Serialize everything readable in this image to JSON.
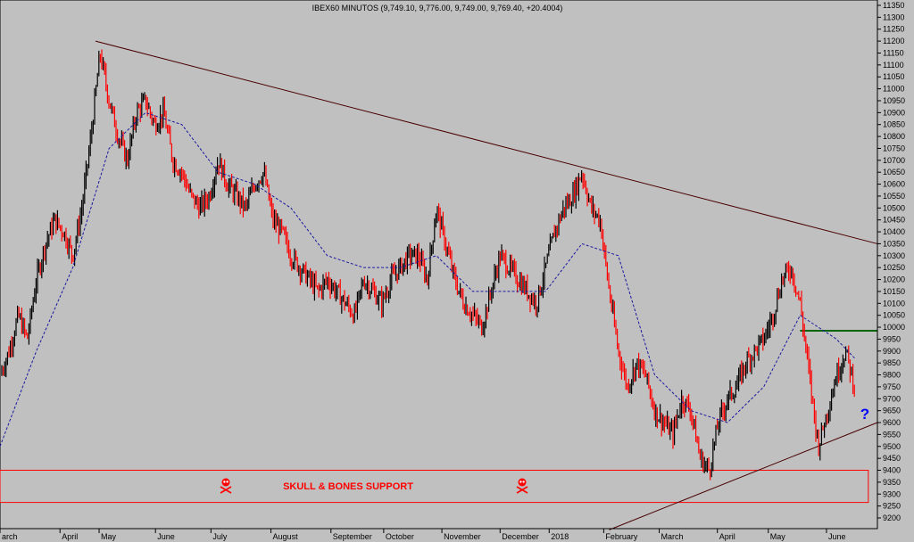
{
  "title": "IBEX60 MINUTOS (9,749.10, 9,776.00, 9,749.00, 9,769.40, +20.4004)",
  "annotations": {
    "support_label": "SKULL & BONES SUPPORT",
    "question_mark": "?"
  },
  "colors": {
    "background": "#c0c0c0",
    "candle_up": "#000000",
    "candle_down": "#ff0000",
    "moving_average": "#1a1aa0",
    "trendline": "#4a0000",
    "resistance": "#006400",
    "support_box": "#ff0000",
    "question_mark": "#0000ff"
  },
  "chart_data": {
    "type": "line",
    "title": "IBEX60 MINUTOS (9,749.10, 9,776.00, 9,749.00, 9,769.40, +20.4004)",
    "ylim": [
      9150,
      11380
    ],
    "y_ticks": [
      11350,
      11300,
      11250,
      11200,
      11150,
      11100,
      11050,
      11000,
      10950,
      10900,
      10850,
      10800,
      10750,
      10700,
      10650,
      10600,
      10550,
      10500,
      10450,
      10400,
      10350,
      10300,
      10250,
      10200,
      10150,
      10100,
      10050,
      10000,
      9950,
      9900,
      9850,
      9800,
      9750,
      9700,
      9650,
      9600,
      9550,
      9500,
      9450,
      9400,
      9350,
      9300,
      9250,
      9200
    ],
    "x_ticks": [
      {
        "label": "arch",
        "t": 0
      },
      {
        "label": "April",
        "t": 6.6
      },
      {
        "label": "May",
        "t": 10.9
      },
      {
        "label": "June",
        "t": 17.1
      },
      {
        "label": "July",
        "t": 23.2
      },
      {
        "label": "August",
        "t": 29.8
      },
      {
        "label": "September",
        "t": 36.4
      },
      {
        "label": "October",
        "t": 42.2
      },
      {
        "label": "November",
        "t": 48.6
      },
      {
        "label": "December",
        "t": 55.0
      },
      {
        "label": "2018",
        "t": 60.4
      },
      {
        "label": "February",
        "t": 66.4
      },
      {
        "label": "March",
        "t": 72.5
      },
      {
        "label": "April",
        "t": 78.9
      },
      {
        "label": "May",
        "t": 84.5
      },
      {
        "label": "June",
        "t": 90.9
      }
    ],
    "t_max": 96.5,
    "series": [
      {
        "name": "",
        "kind": "price",
        "x": [
          0,
          1,
          2,
          3,
          4,
          5,
          6,
          7,
          8,
          9,
          10,
          11,
          12,
          13,
          14,
          15,
          16,
          17,
          18,
          19,
          20,
          21,
          22,
          23,
          24,
          25,
          26,
          27,
          28,
          29,
          30,
          31,
          32,
          33,
          34,
          35,
          36,
          37,
          38,
          39,
          40,
          41,
          42,
          43,
          44,
          45,
          46,
          47,
          48,
          49,
          50,
          51,
          52,
          53,
          54,
          55,
          56,
          57,
          58,
          59,
          60,
          61,
          62,
          63,
          64,
          65,
          66,
          67,
          68,
          69,
          70,
          71,
          72,
          73,
          74,
          75,
          76,
          77,
          78,
          79,
          80,
          81,
          82,
          83,
          84,
          85,
          86,
          87,
          88,
          89,
          90,
          91,
          92,
          93,
          94
        ],
        "values": [
          9800,
          9900,
          10050,
          9950,
          10200,
          10350,
          10450,
          10400,
          10300,
          10500,
          10800,
          11150,
          10950,
          10800,
          10700,
          10900,
          10950,
          10850,
          10900,
          10700,
          10650,
          10550,
          10500,
          10550,
          10700,
          10600,
          10550,
          10500,
          10600,
          10650,
          10450,
          10400,
          10300,
          10250,
          10200,
          10150,
          10200,
          10150,
          10100,
          10050,
          10200,
          10150,
          10100,
          10200,
          10250,
          10300,
          10300,
          10200,
          10500,
          10350,
          10200,
          10100,
          10050,
          10000,
          10150,
          10300,
          10250,
          10200,
          10150,
          10100,
          10250,
          10400,
          10500,
          10550,
          10650,
          10500,
          10450,
          10150,
          9900,
          9750,
          9850,
          9800,
          9650,
          9600,
          9550,
          9700,
          9650,
          9450,
          9400,
          9600,
          9700,
          9750,
          9850,
          9900,
          9950,
          10050,
          10200,
          10250,
          10100,
          9800,
          9500,
          9650,
          9800,
          9900,
          9750
        ]
      },
      {
        "name": "",
        "kind": "moving_average",
        "x": [
          0,
          4,
          8,
          12,
          16,
          20,
          24,
          28,
          32,
          36,
          40,
          44,
          48,
          52,
          56,
          60,
          64,
          68,
          72,
          76,
          80,
          84,
          88,
          92,
          94
        ],
        "values": [
          9500,
          9900,
          10250,
          10750,
          10900,
          10850,
          10650,
          10600,
          10500,
          10300,
          10250,
          10250,
          10300,
          10150,
          10150,
          10150,
          10350,
          10300,
          9800,
          9650,
          9600,
          9750,
          10050,
          9950,
          9870
        ]
      }
    ],
    "lines": [
      {
        "name": "",
        "kind": "downtrend",
        "x": [
          10.5,
          96.5
        ],
        "values": [
          11200,
          10350
        ]
      },
      {
        "name": "",
        "kind": "uptrend",
        "x": [
          67,
          96.5
        ],
        "values": [
          9150,
          9600
        ]
      },
      {
        "name": "",
        "kind": "resistance",
        "x": [
          88,
          96.5
        ],
        "values": [
          9985,
          9985
        ]
      }
    ],
    "zones": [
      {
        "label": "SKULL & BONES SUPPORT",
        "kind": "support_box",
        "y_range": [
          9265,
          9400
        ],
        "x_range": [
          0,
          95.5
        ]
      }
    ]
  }
}
